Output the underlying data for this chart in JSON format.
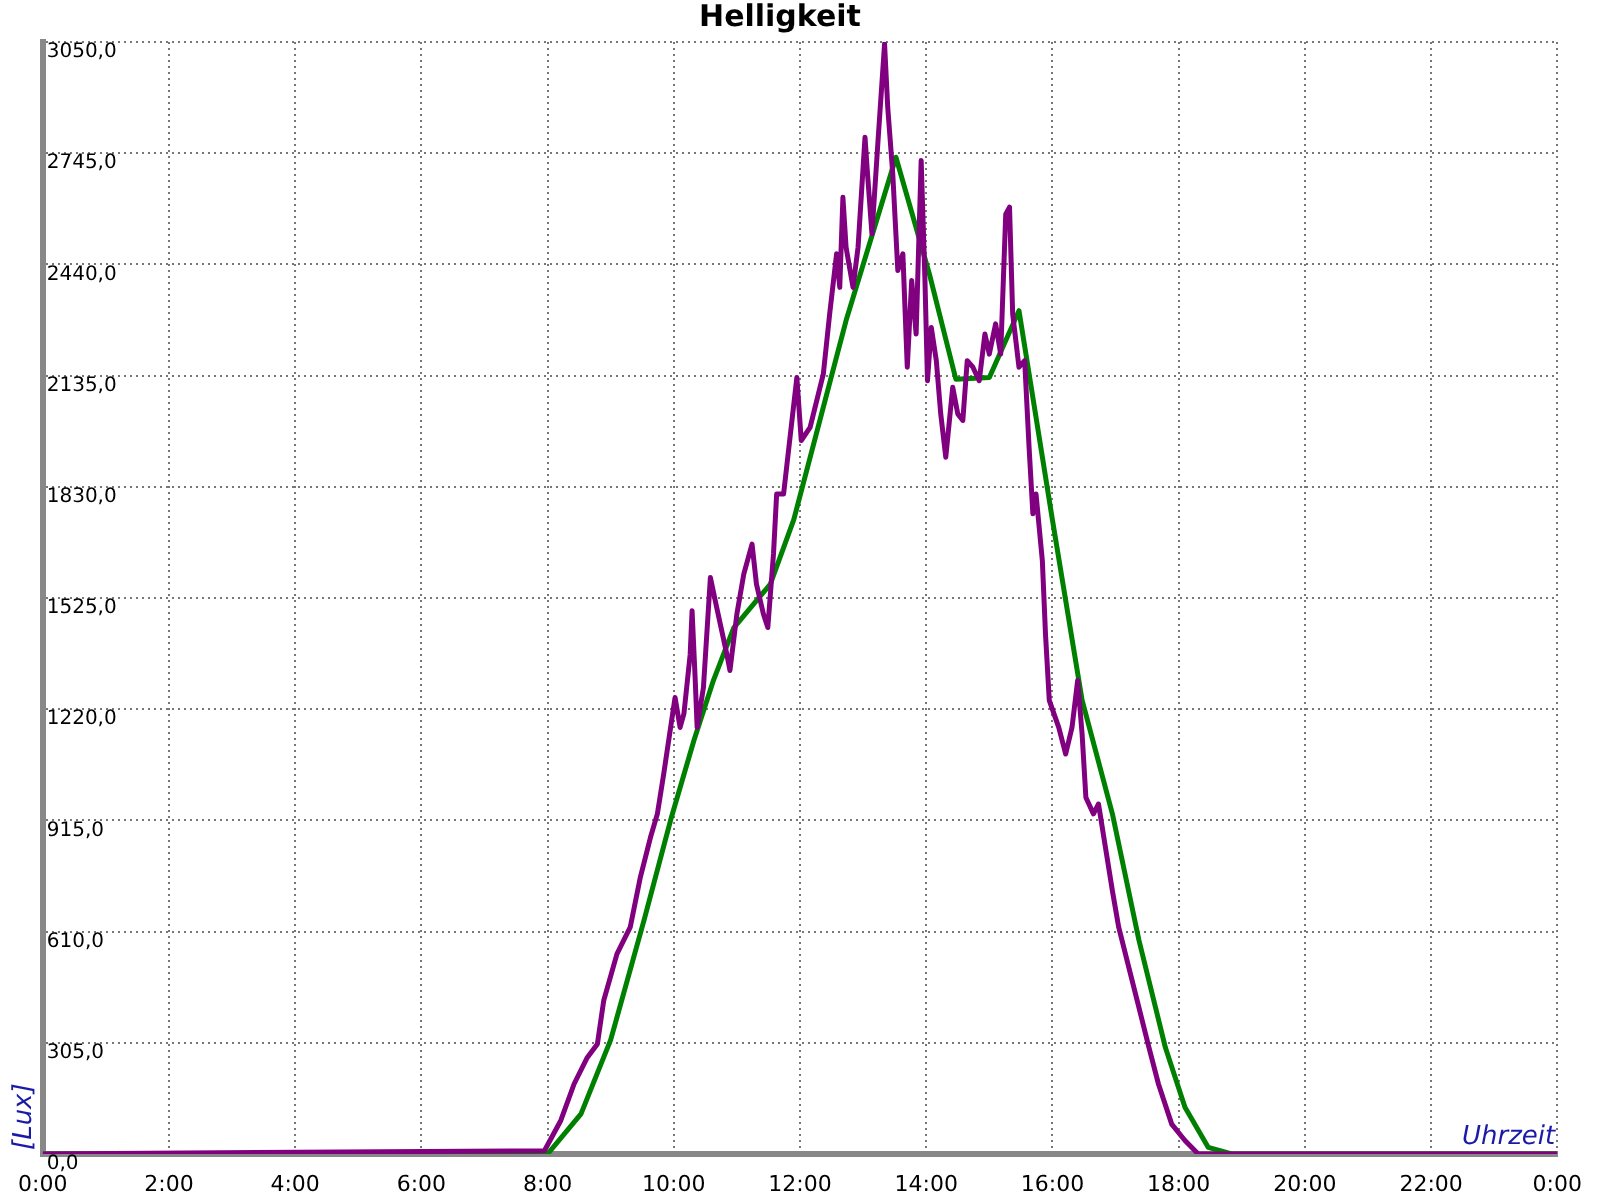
{
  "chart_data": {
    "type": "line",
    "title": "Helligkeit",
    "xlabel": "Uhrzeit",
    "ylabel": "[Lux]",
    "xlim": [
      0,
      24
    ],
    "xticks": [
      {
        "value": 0,
        "label": "0:00"
      },
      {
        "value": 2,
        "label": "2:00"
      },
      {
        "value": 4,
        "label": "4:00"
      },
      {
        "value": 6,
        "label": "6:00"
      },
      {
        "value": 8,
        "label": "8:00"
      },
      {
        "value": 10,
        "label": "10:00"
      },
      {
        "value": 12,
        "label": "12:00"
      },
      {
        "value": 14,
        "label": "14:00"
      },
      {
        "value": 16,
        "label": "16:00"
      },
      {
        "value": 18,
        "label": "18:00"
      },
      {
        "value": 20,
        "label": "20:00"
      },
      {
        "value": 22,
        "label": "22:00"
      },
      {
        "value": 24,
        "label": "0:00"
      }
    ],
    "ylim": [
      0,
      3050
    ],
    "yticks": [
      {
        "value": 0,
        "label": "0,0"
      },
      {
        "value": 305,
        "label": "305,0"
      },
      {
        "value": 610,
        "label": "610,0"
      },
      {
        "value": 915,
        "label": "915,0"
      },
      {
        "value": 1220,
        "label": "1220,0"
      },
      {
        "value": 1525,
        "label": "1525,0"
      },
      {
        "value": 1830,
        "label": "1830,0"
      },
      {
        "value": 2135,
        "label": "2135,0"
      },
      {
        "value": 2440,
        "label": "2440,0"
      },
      {
        "value": 2745,
        "label": "2745,0"
      },
      {
        "value": 3050,
        "label": "3050,0"
      }
    ],
    "grid": true,
    "legend": false,
    "marker": "none",
    "line_style": "solid",
    "series": [
      {
        "color": "#800080",
        "x": [
          0,
          7.95,
          8.21,
          8.42,
          8.63,
          8.79,
          8.89,
          9.1,
          9.31,
          9.47,
          9.63,
          9.74,
          9.84,
          9.95,
          10.02,
          10.1,
          10.16,
          10.26,
          10.29,
          10.34,
          10.37,
          10.47,
          10.58,
          10.68,
          10.84,
          10.89,
          11.0,
          11.11,
          11.24,
          11.31,
          11.42,
          11.49,
          11.58,
          11.63,
          11.74,
          11.95,
          12.02,
          12.16,
          12.37,
          12.47,
          12.58,
          12.63,
          12.68,
          12.73,
          12.84,
          12.92,
          13.03,
          13.07,
          13.14,
          13.24,
          13.34,
          13.39,
          13.47,
          13.55,
          13.63,
          13.7,
          13.77,
          13.84,
          13.92,
          13.98,
          14.02,
          14.08,
          14.16,
          14.23,
          14.31,
          14.42,
          14.5,
          14.58,
          14.65,
          14.74,
          14.84,
          14.93,
          15.0,
          15.1,
          15.18,
          15.26,
          15.32,
          15.37,
          15.47,
          15.56,
          15.63,
          15.69,
          15.74,
          15.84,
          15.89,
          15.95,
          16.1,
          16.21,
          16.31,
          16.4,
          16.47,
          16.53,
          16.65,
          16.73,
          16.84,
          16.95,
          17.05,
          17.21,
          17.37,
          17.53,
          17.68,
          17.89,
          18.1,
          18.31,
          24
        ],
        "values": [
          0,
          9,
          92,
          192,
          265,
          302,
          421,
          549,
          622,
          759,
          868,
          933,
          1042,
          1170,
          1252,
          1170,
          1207,
          1371,
          1490,
          1299,
          1170,
          1280,
          1581,
          1499,
          1371,
          1326,
          1481,
          1591,
          1673,
          1563,
          1481,
          1444,
          1646,
          1810,
          1810,
          2130,
          1957,
          1993,
          2140,
          2304,
          2469,
          2377,
          2624,
          2487,
          2377,
          2487,
          2789,
          2688,
          2524,
          2789,
          3045,
          2871,
          2688,
          2423,
          2469,
          2158,
          2396,
          2249,
          2725,
          2396,
          2121,
          2267,
          2176,
          2030,
          1911,
          2103,
          2030,
          2012,
          2176,
          2158,
          2121,
          2249,
          2194,
          2277,
          2194,
          2578,
          2597,
          2304,
          2158,
          2176,
          1938,
          1756,
          1810,
          1628,
          1426,
          1244,
          1170,
          1097,
          1170,
          1299,
          1152,
          978,
          933,
          960,
          841,
          722,
          622,
          512,
          402,
          292,
          192,
          82,
          37,
          0,
          0
        ]
      },
      {
        "color": "#008000",
        "x": [
          0,
          8.0,
          8.53,
          9.0,
          9.53,
          9.95,
          10.32,
          10.63,
          10.95,
          11.53,
          11.9,
          12.73,
          13.52,
          14.05,
          14.47,
          15.0,
          15.47,
          16.0,
          16.47,
          16.95,
          17.37,
          17.79,
          18.1,
          18.47,
          18.84,
          24
        ],
        "values": [
          0,
          0,
          110,
          313,
          642,
          916,
          1135,
          1300,
          1443,
          1563,
          1739,
          2286,
          2734,
          2414,
          2125,
          2130,
          2313,
          1739,
          1245,
          933,
          587,
          292,
          128,
          18,
          0,
          0
        ]
      }
    ]
  }
}
